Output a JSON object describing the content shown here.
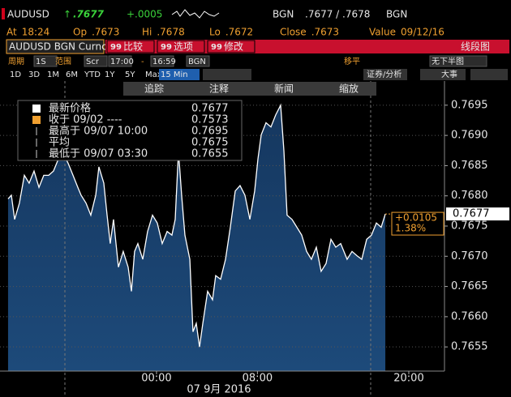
{
  "header": {
    "ticker": "AUDUSD",
    "arrow": "↑",
    "last": ".7677",
    "change": "+.0005",
    "source": "BGN",
    "quote": ".7677 / .7678",
    "quote_source": "BGN"
  },
  "stats": [
    {
      "label": "At",
      "value": "18:24"
    },
    {
      "label": "Op",
      "value": ".7673"
    },
    {
      "label": "Hi",
      "value": ".7678"
    },
    {
      "label": "Lo",
      "value": ".7672"
    },
    {
      "label": "Close",
      "value": ".7673"
    },
    {
      "label": "Value",
      "value": "09/12/16"
    }
  ],
  "toolbar": {
    "security": "AUDUSD BGN Curncy",
    "button_icon": "99",
    "buttons": [
      "比较",
      "选项",
      "修改"
    ],
    "chart_type": "线段图"
  },
  "settings": {
    "period_label": "周期",
    "period": "1S",
    "range_label": "范围",
    "range": "Scr",
    "start": "17:00",
    "dash": "-",
    "end": "16:59",
    "source": "BGN",
    "smoothing": "移平",
    "lower_chart": "无下半图"
  },
  "periods": [
    "1D",
    "3D",
    "1M",
    "6M",
    "YTD",
    "1Y",
    "5Y",
    "Max"
  ],
  "interval": "15 Min",
  "analysis": "证券/分析",
  "events": "大事",
  "actions": [
    "追踪",
    "注释",
    "新闻",
    "缩放"
  ],
  "chart_data": {
    "type": "line",
    "color": "#ffffff",
    "fill": "#15375f",
    "grid": true,
    "xlabel": "07 9月 2016",
    "xlim": [
      -12.41,
      22.83
    ],
    "xticks": [
      {
        "value": 0,
        "label": "00:00"
      },
      {
        "value": 8,
        "label": "08:00"
      },
      {
        "value": 20,
        "label": "20:00"
      }
    ],
    "ylim": [
      0.7651,
      0.7699
    ],
    "yticks": [
      0.7655,
      {
        "value": 0.766,
        "label": "0.7660"
      },
      0.7665,
      {
        "value": 0.767,
        "label": "0.7670"
      },
      0.7675,
      {
        "value": 0.768,
        "label": "0.7680"
      },
      0.7685,
      {
        "value": 0.769,
        "label": "0.7690"
      },
      0.7695
    ],
    "x": [
      -11.77,
      -11.51,
      -11.25,
      -10.87,
      -10.48,
      -10.1,
      -9.71,
      -9.32,
      -8.94,
      -8.55,
      -8.17,
      -7.78,
      -7.4,
      -7.01,
      -6.62,
      -6.24,
      -5.98,
      -5.59,
      -5.21,
      -4.82,
      -4.57,
      -4.18,
      -3.92,
      -3.67,
      -3.41,
      -3.02,
      -2.64,
      -2.25,
      -1.99,
      -1.74,
      -1.48,
      -1.09,
      -0.71,
      -0.32,
      0.06,
      0.45,
      0.84,
      1.22,
      1.48,
      1.74,
      1.99,
      2.25,
      2.64,
      2.89,
      3.15,
      3.41,
      3.67,
      4.05,
      4.44,
      4.69,
      5.08,
      5.47,
      5.85,
      6.24,
      6.62,
      7.01,
      7.4,
      7.78,
      8.04,
      8.3,
      8.68,
      9.07,
      9.45,
      9.84,
      10.1,
      10.35,
      10.74,
      11.13,
      11.51,
      11.9,
      12.28,
      12.67,
      13.05,
      13.44,
      13.83,
      14.21,
      14.6,
      15.11,
      15.5,
      15.88,
      16.27,
      16.66,
      17.04,
      17.43,
      17.81,
      18.14
    ],
    "values": [
      0.76795,
      0.76801,
      0.76761,
      0.76788,
      0.76834,
      0.76821,
      0.76841,
      0.76814,
      0.76834,
      0.76834,
      0.76841,
      0.76861,
      0.7687,
      0.76854,
      0.76834,
      0.76814,
      0.76801,
      0.76788,
      0.76768,
      0.76801,
      0.76848,
      0.76821,
      0.76768,
      0.76721,
      0.76761,
      0.76682,
      0.76708,
      0.76682,
      0.76642,
      0.76708,
      0.76721,
      0.76695,
      0.76741,
      0.76768,
      0.76755,
      0.76721,
      0.76741,
      0.76735,
      0.76761,
      0.76874,
      0.76801,
      0.76735,
      0.76695,
      0.76575,
      0.76589,
      0.7655,
      0.76589,
      0.76642,
      0.76628,
      0.76668,
      0.76662,
      0.76695,
      0.76748,
      0.76808,
      0.76817,
      0.76801,
      0.76761,
      0.76808,
      0.76861,
      0.76901,
      0.76921,
      0.76914,
      0.76934,
      0.7695,
      0.76874,
      0.76768,
      0.76761,
      0.76748,
      0.76735,
      0.76708,
      0.76695,
      0.76715,
      0.76675,
      0.76688,
      0.76728,
      0.76715,
      0.76721,
      0.76695,
      0.76708,
      0.76701,
      0.76695,
      0.76728,
      0.76735,
      0.76755,
      0.76748,
      0.7677
    ],
    "legend": [
      {
        "label": "最新价格",
        "value": "0.7677"
      },
      {
        "label": "收于 09/02 ----",
        "value": "0.7573"
      },
      {
        "label": "最高于 09/07 10:00",
        "value": "0.7695"
      },
      {
        "label": "平均",
        "value": "0.7675"
      },
      {
        "label": "最低于 09/07 03:30",
        "value": "0.7655"
      }
    ],
    "change": "+0.0105",
    "change_pct": "1.38%"
  }
}
